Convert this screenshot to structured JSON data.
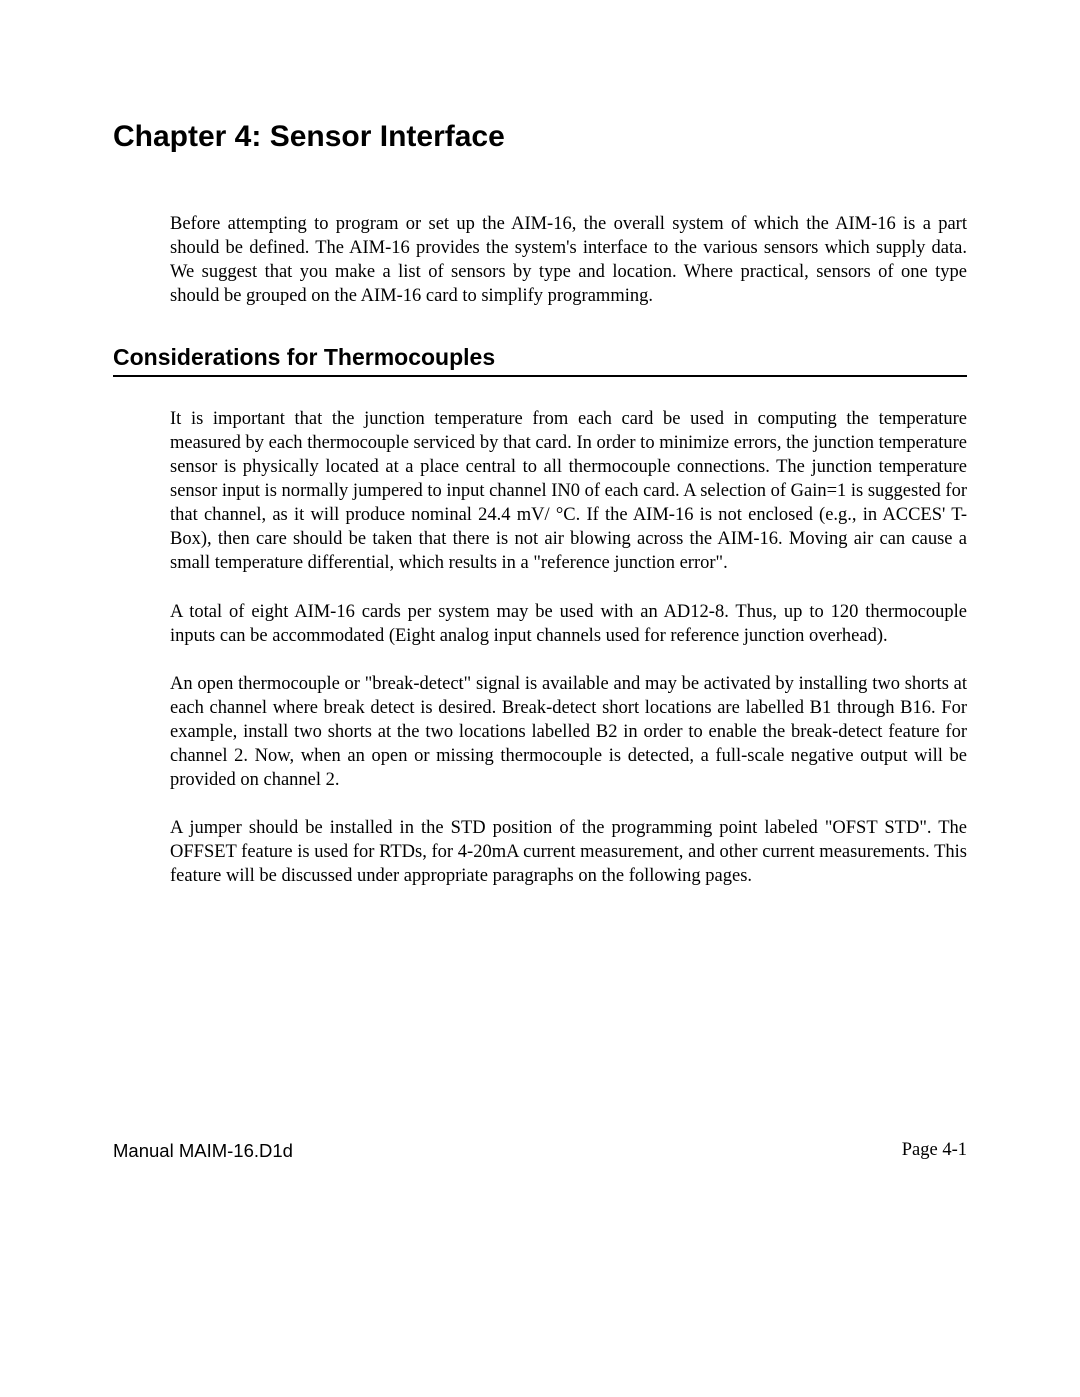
{
  "chapter_title": "Chapter 4:  Sensor Interface",
  "intro": "Before attempting to program or set up the AIM-16, the overall system of which the AIM-16 is a part should be defined.  The AIM-16 provides the system's interface to the various sensors which supply data.  We suggest that you make a  list of sensors by type and location.  Where practical, sensors of one type should be grouped on the AIM-16 card to simplify programming.",
  "section_heading": "Considerations for Thermocouples",
  "paragraphs": {
    "p1": "It is important that the junction temperature from each card be used in computing the temperature measured by each thermocouple serviced by that card.  In order to minimize errors, the junction temperature sensor is physically located at a place central to all thermocouple connections. The junction temperature sensor input is normally jumpered to input channel IN0 of each card.  A selection of Gain=1 is suggested for that channel, as it will produce nominal 24.4 mV/ °C.  If the AIM-16 is not enclosed (e.g., in ACCES' T-Box), then care should be taken that there is not air blowing across the AIM-16.  Moving air can cause a small temperature differential, which results in a \"reference junction error\".",
    "p2": "A total of eight  AIM-16 cards per system may be used with an AD12-8.  Thus, up to 120 thermocouple inputs can be accommodated (Eight analog input channels used for reference junction overhead).",
    "p3": "An open thermocouple or \"break-detect\" signal is available and may be activated by installing two shorts at each channel where break detect is desired.  Break-detect short locations are labelled B1 through B16. For example, install two shorts at the two locations labelled B2 in order to enable the break-detect feature for channel 2.  Now, when an open or missing thermocouple is detected, a full-scale negative output will be provided on channel 2.",
    "p4": "A jumper should be installed in the STD position of the programming point labeled \"OFST STD\".  The OFFSET feature is used for RTDs, for 4-20mA current measurement, and other current measurements.  This feature will be discussed under appropriate paragraphs on the following pages."
  },
  "footer": {
    "left": "Manual MAIM-16.D1d",
    "right": "Page 4-1"
  }
}
